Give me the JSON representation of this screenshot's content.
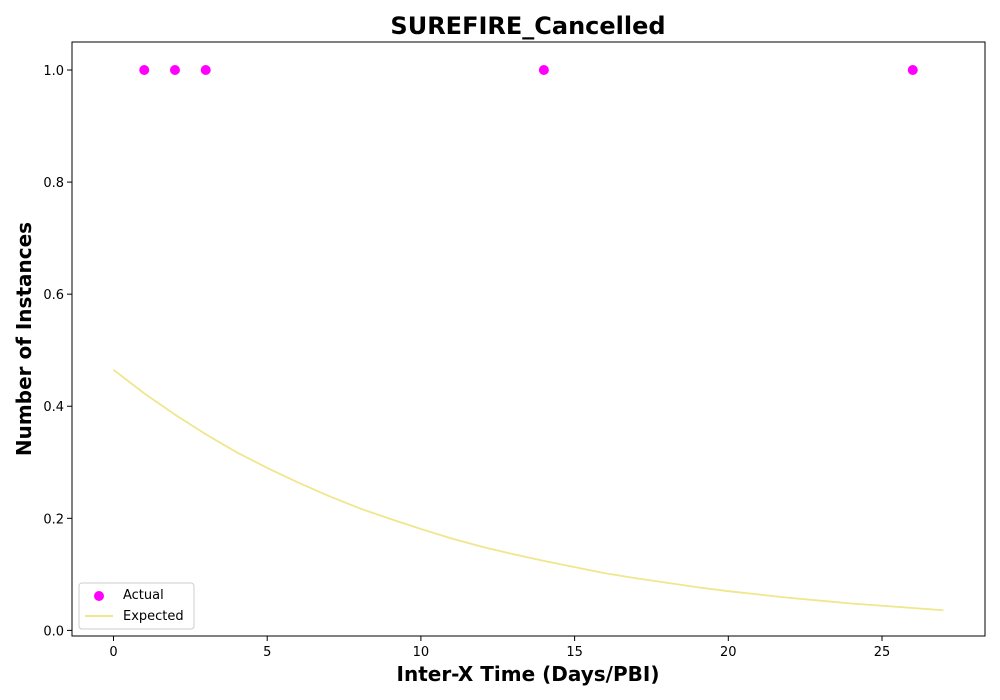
{
  "chart_data": {
    "type": "scatter",
    "title": "SUREFIRE_Cancelled",
    "xlabel": "Inter-X Time (Days/PBI)",
    "ylabel": "Number of Instances",
    "xlim": [
      -1.35,
      28.35
    ],
    "ylim": [
      -0.01,
      1.05
    ],
    "xticks": [
      0,
      5,
      10,
      15,
      20,
      25
    ],
    "xtick_labels": [
      "0",
      "5",
      "10",
      "15",
      "20",
      "25"
    ],
    "yticks": [
      0.0,
      0.2,
      0.4,
      0.6,
      0.8,
      1.0
    ],
    "ytick_labels": [
      "0.0",
      "0.2",
      "0.4",
      "0.6",
      "0.8",
      "1.0"
    ],
    "grid": false,
    "legend_position": "lower-left",
    "series": [
      {
        "name": "Actual",
        "kind": "scatter",
        "color": "#ff00ff",
        "x": [
          1,
          2,
          3,
          14,
          26
        ],
        "y": [
          1,
          1,
          1,
          1,
          1
        ]
      },
      {
        "name": "Expected",
        "kind": "line",
        "color": "#f0e68c",
        "x": [
          0,
          1,
          2,
          3,
          4,
          5,
          6,
          7,
          8,
          9,
          10,
          11,
          12,
          13,
          14,
          15,
          16,
          17,
          18,
          19,
          20,
          21,
          22,
          23,
          24,
          25,
          26,
          27
        ],
        "y": [
          0.465,
          0.423,
          0.385,
          0.35,
          0.318,
          0.29,
          0.264,
          0.24,
          0.218,
          0.199,
          0.181,
          0.164,
          0.149,
          0.136,
          0.124,
          0.113,
          0.102,
          0.093,
          0.085,
          0.077,
          0.07,
          0.064,
          0.058,
          0.053,
          0.048,
          0.044,
          0.04,
          0.036
        ]
      }
    ]
  }
}
